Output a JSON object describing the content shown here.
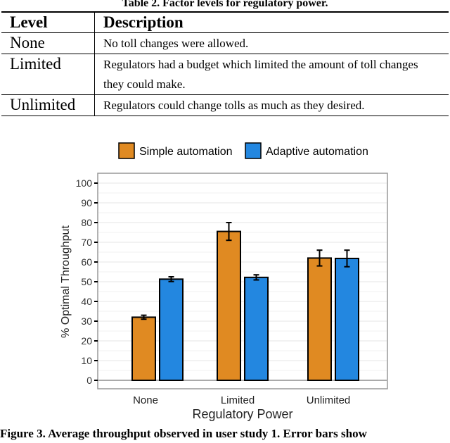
{
  "table": {
    "caption": "Table 2. Factor levels for regulatory power.",
    "headers": [
      "Level",
      "Description"
    ],
    "rows": [
      {
        "level": "None",
        "description": "No toll changes were allowed."
      },
      {
        "level": "Limited",
        "description": "Regulators had a budget which limited the amount of toll changes they could make."
      },
      {
        "level": "Unlimited",
        "description": "Regulators could change tolls as much as they desired."
      }
    ]
  },
  "chart_data": {
    "type": "bar",
    "categories": [
      "None",
      "Limited",
      "Unlimited"
    ],
    "series": [
      {
        "name": "Simple automation",
        "color": "#E08A22",
        "values": [
          32,
          75.5,
          62
        ],
        "error": [
          1,
          4.5,
          4
        ]
      },
      {
        "name": "Adaptive automation",
        "color": "#2387E0",
        "values": [
          51.3,
          52.2,
          61.8
        ],
        "error": [
          1.2,
          1.3,
          4.2
        ]
      }
    ],
    "xlabel": "Regulatory Power",
    "ylabel": "% Optimal Throughput",
    "ylim": [
      0,
      100
    ],
    "yticks": [
      "0",
      "10",
      "20",
      "30",
      "40",
      "50",
      "60",
      "70",
      "80",
      "90",
      "100"
    ],
    "legend": "top",
    "grid": true
  },
  "figure_caption": "Figure 3. Average throughput observed in user study 1. Error bars show"
}
